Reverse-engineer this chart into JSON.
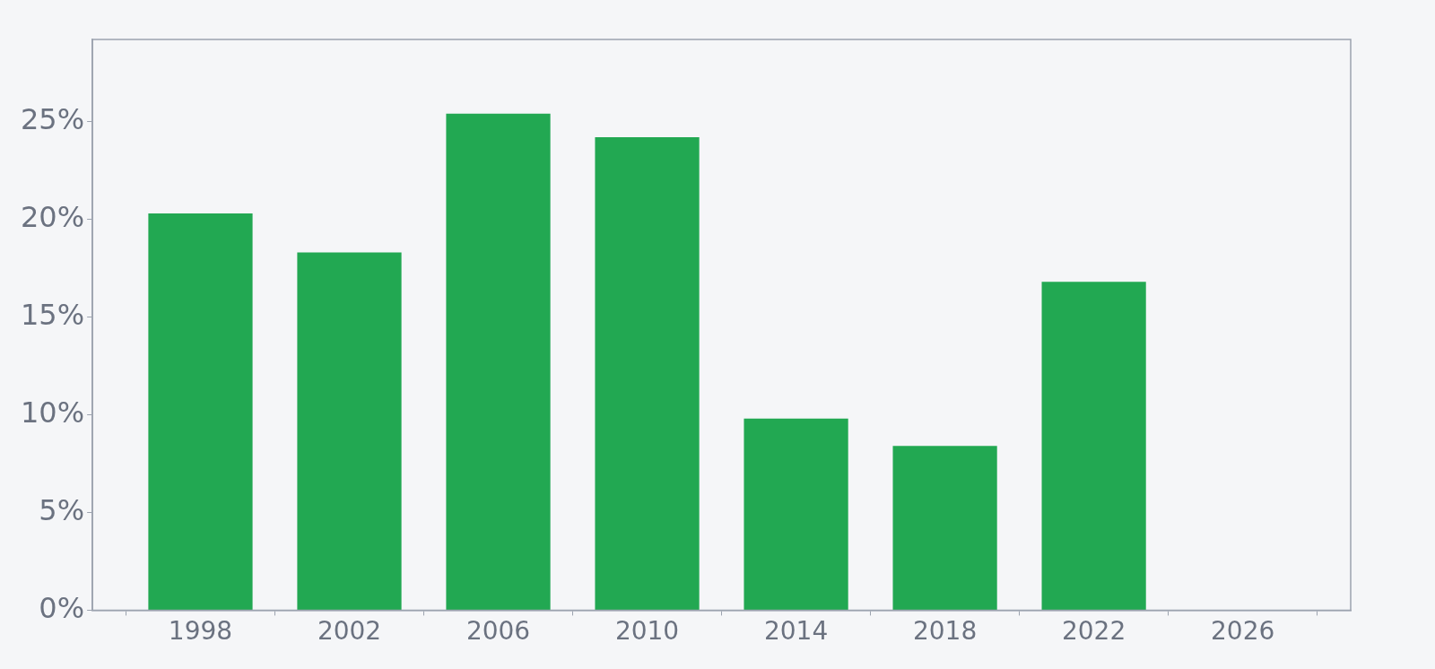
{
  "chart_data": {
    "type": "bar",
    "x": [
      1998,
      2002,
      2006,
      2010,
      2014,
      2018,
      2022
    ],
    "values": [
      20.3,
      18.3,
      25.4,
      24.2,
      9.8,
      8.4,
      16.8
    ],
    "color": "#22a852",
    "xlim": [
      1995.1,
      2028.9
    ],
    "xticks": [
      1998,
      2002,
      2006,
      2010,
      2014,
      2018,
      2022,
      2026
    ],
    "ylim": [
      0,
      29.2
    ],
    "yticks": [
      {
        "value": 0,
        "label": "0%"
      },
      {
        "value": 5,
        "label": "5%"
      },
      {
        "value": 10,
        "label": "10%"
      },
      {
        "value": 15,
        "label": "15%"
      },
      {
        "value": 20,
        "label": "20%"
      },
      {
        "value": 25,
        "label": "25%"
      }
    ],
    "grid": false,
    "legend": false
  }
}
